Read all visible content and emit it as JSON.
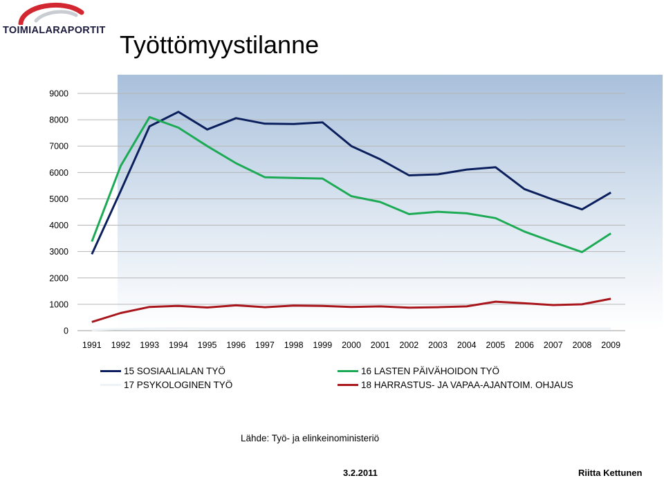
{
  "logo": {
    "text": "TOIMIALARAPORTIT",
    "colors": {
      "arc": "#d22630",
      "text": "#1a1a3c"
    }
  },
  "slide": {
    "title": "Työttömyystilanne",
    "source": "Lähde: Työ- ja elinkeinoministeriö",
    "date": "3.2.2011",
    "author": "Riitta Kettunen"
  },
  "chart_data": {
    "type": "line",
    "title": "",
    "xlabel": "",
    "ylabel": "",
    "x": [
      "1991",
      "1992",
      "1993",
      "1994",
      "1995",
      "1996",
      "1997",
      "1998",
      "1999",
      "2000",
      "2001",
      "2002",
      "2003",
      "2004",
      "2005",
      "2006",
      "2007",
      "2008",
      "2009"
    ],
    "ylim": [
      0,
      9000
    ],
    "yticks": [
      0,
      1000,
      2000,
      3000,
      4000,
      5000,
      6000,
      7000,
      8000,
      9000
    ],
    "grid": true,
    "legend_position": "bottom",
    "series": [
      {
        "name": "15 SOSIAALIALAN TYÖ",
        "color": "#0b1f5c",
        "values": [
          2900,
          5300,
          7750,
          8300,
          7630,
          8060,
          7850,
          7840,
          7900,
          7000,
          6500,
          5890,
          5930,
          6110,
          6200,
          5370,
          4970,
          4600,
          5240
        ]
      },
      {
        "name": "16 LASTEN PÄIVÄHOIDON TYÖ",
        "color": "#1daa55",
        "values": [
          3380,
          6250,
          8100,
          7700,
          7000,
          6350,
          5820,
          5790,
          5770,
          5100,
          4880,
          4420,
          4510,
          4450,
          4270,
          3760,
          3360,
          2980,
          3690
        ]
      },
      {
        "name": "17 PSYKOLOGINEN TYÖ",
        "color": "#eef3f7",
        "values": [
          30,
          60,
          80,
          90,
          80,
          80,
          80,
          80,
          80,
          80,
          80,
          80,
          80,
          80,
          80,
          80,
          80,
          80,
          80
        ]
      },
      {
        "name": "18 HARRASTUS- JA VAPAA-AJANTOIM. OHJAUS",
        "color": "#a8151b",
        "values": [
          330,
          670,
          900,
          940,
          880,
          960,
          890,
          950,
          940,
          900,
          920,
          870,
          890,
          920,
          1100,
          1040,
          970,
          1000,
          1210
        ]
      }
    ]
  }
}
